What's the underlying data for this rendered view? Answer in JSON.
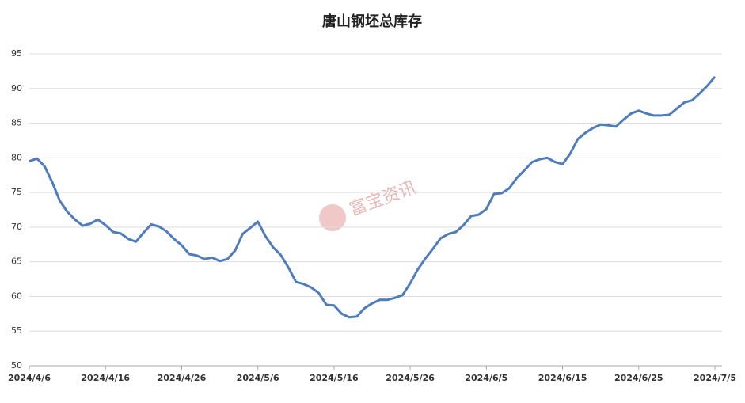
{
  "chart_data": {
    "type": "line",
    "title": "唐山钢坯总库存",
    "watermark": "富宝资讯",
    "categories": [
      "2024/4/6",
      null,
      null,
      null,
      null,
      null,
      null,
      null,
      null,
      null,
      "2024/4/16",
      null,
      null,
      null,
      null,
      null,
      null,
      null,
      null,
      null,
      "2024/4/26",
      null,
      null,
      null,
      null,
      null,
      null,
      null,
      null,
      null,
      "2024/5/6",
      null,
      null,
      null,
      null,
      null,
      null,
      null,
      null,
      null,
      "2024/5/16",
      null,
      null,
      null,
      null,
      null,
      null,
      null,
      null,
      null,
      "2024/5/26",
      null,
      null,
      null,
      null,
      null,
      null,
      null,
      null,
      null,
      "2024/6/5",
      null,
      null,
      null,
      null,
      null,
      null,
      null,
      null,
      null,
      "2024/6/15",
      null,
      null,
      null,
      null,
      null,
      null,
      null,
      null,
      null,
      "2024/6/25",
      null,
      null,
      null,
      null,
      null,
      null,
      null,
      null,
      null,
      "2024/7/5"
    ],
    "series": [
      {
        "color": "#4f7cbb",
        "values": [
          79.5,
          79.9,
          78.8,
          76.5,
          73.8,
          72.2,
          71.1,
          70.2,
          70.5,
          71.1,
          70.3,
          69.3,
          69.1,
          68.3,
          67.9,
          69.2,
          70.4,
          70.1,
          69.4,
          68.3,
          67.4,
          66.1,
          65.9,
          65.4,
          65.6,
          65.1,
          65.4,
          66.6,
          69.0,
          69.9,
          70.8,
          68.7,
          67.1,
          66.0,
          64.2,
          62.1,
          61.8,
          61.3,
          60.5,
          58.8,
          58.7,
          57.5,
          57.0,
          57.1,
          58.3,
          59.0,
          59.5,
          59.5,
          59.8,
          60.2,
          61.9,
          63.9,
          65.5,
          66.9,
          68.4,
          69.0,
          69.3,
          70.3,
          71.6,
          71.8,
          72.6,
          74.8,
          74.9,
          75.6,
          77.1,
          78.2,
          79.4,
          79.8,
          80.0,
          79.4,
          79.1,
          80.6,
          82.7,
          83.6,
          84.3,
          84.8,
          84.7,
          84.5,
          85.5,
          86.4,
          86.8,
          86.4,
          86.1,
          86.1,
          86.2,
          87.1,
          88.0,
          88.3,
          89.3,
          90.4,
          91.7
        ]
      }
    ],
    "ylim": [
      50,
      95
    ],
    "yticks": [
      50,
      55,
      60,
      65,
      70,
      75,
      80,
      85,
      90,
      95
    ],
    "grid": true
  }
}
